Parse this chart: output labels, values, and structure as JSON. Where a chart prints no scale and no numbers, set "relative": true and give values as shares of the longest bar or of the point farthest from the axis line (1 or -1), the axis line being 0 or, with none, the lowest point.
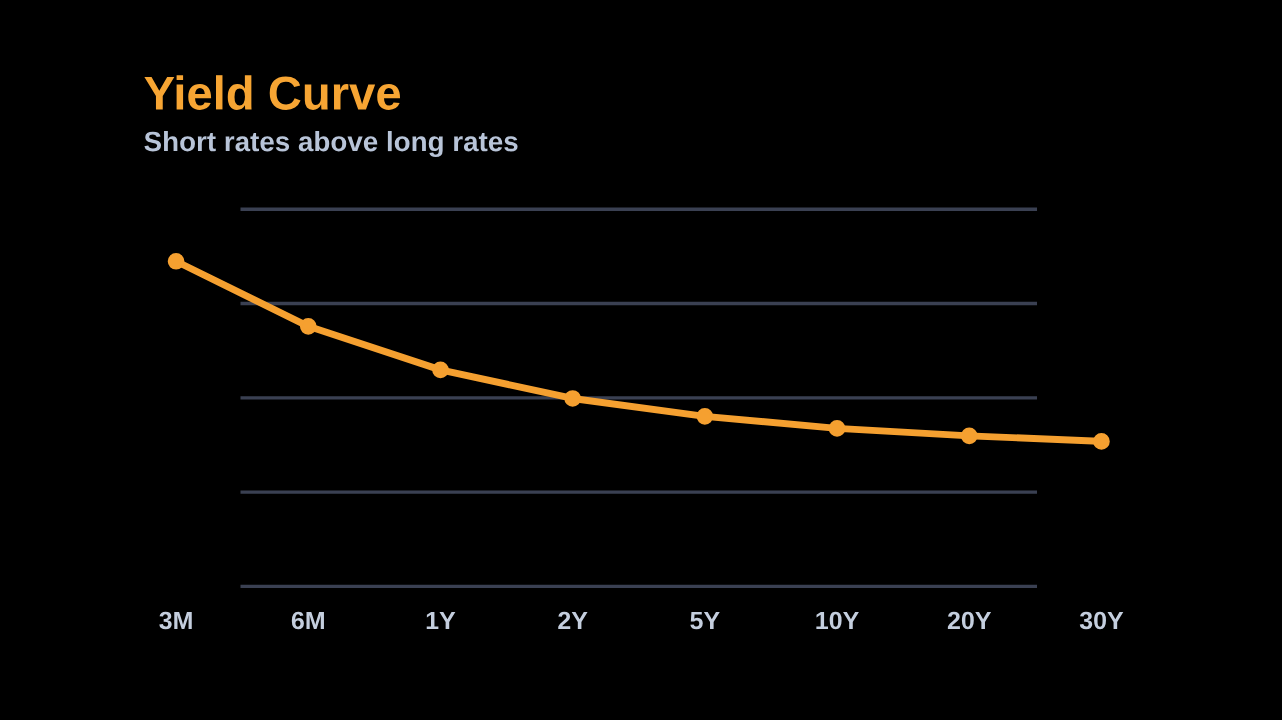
{
  "chart_data": {
    "type": "line",
    "title": "Yield Curve",
    "subtitle": "Short rates above long rates",
    "categories": [
      "3M",
      "6M",
      "1Y",
      "2Y",
      "5Y",
      "10Y",
      "20Y",
      "30Y"
    ],
    "relative": true,
    "series": [
      {
        "color": "#f5a030",
        "values": [
          1,
          0.8,
          0.666,
          0.578,
          0.523,
          0.486,
          0.463,
          0.446
        ]
      }
    ],
    "marker": "circle",
    "line_style": "solid",
    "ref_lines": [
      {
        "axis": "y",
        "value": 0.29,
        "color": "#3a4052"
      },
      {
        "axis": "y",
        "value": 0.58,
        "color": "#3a4052"
      },
      {
        "axis": "y",
        "value": 0.87,
        "color": "#3a4052"
      },
      {
        "axis": "y",
        "value": 1.16,
        "color": "#3a4052"
      }
    ]
  }
}
